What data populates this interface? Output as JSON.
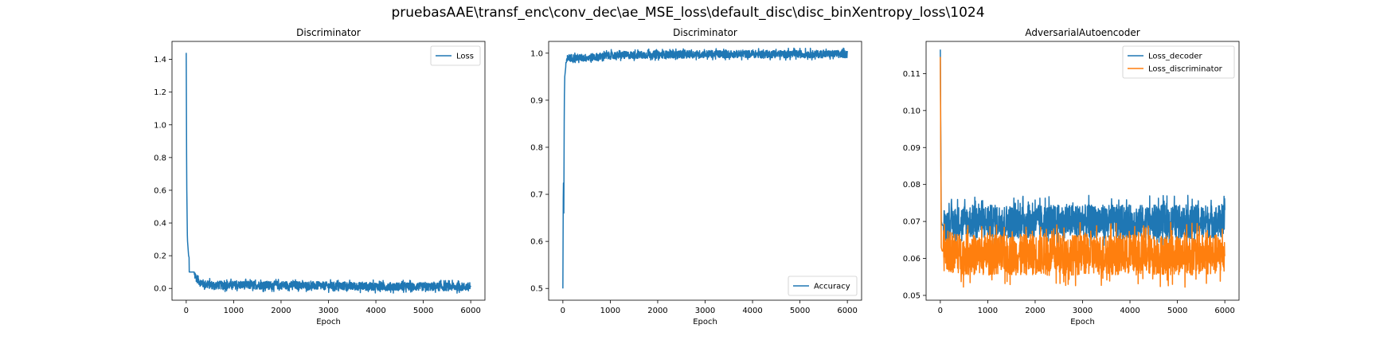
{
  "figure": {
    "suptitle": "pruebasAAE\\transf_enc\\conv_dec\\ae_MSE_loss\\default_disc\\disc_binXentropy_loss\\1024"
  },
  "colors": {
    "blue": "#1f77b4",
    "orange": "#ff7f0e"
  },
  "chart_data": [
    {
      "type": "line",
      "title": "Discriminator",
      "xlabel": "Epoch",
      "ylabel": "",
      "xlim": [
        -300,
        6300
      ],
      "ylim": [
        -0.072,
        1.51
      ],
      "xticks": [
        0,
        1000,
        2000,
        3000,
        4000,
        5000,
        6000
      ],
      "yticks": [
        0.0,
        0.2,
        0.4,
        0.6,
        0.8,
        1.0,
        1.2,
        1.4
      ],
      "ytick_format": 1,
      "legend": "upper right",
      "grid": false,
      "series": [
        {
          "name": "Loss",
          "color": "#1f77b4",
          "x": [
            0,
            10,
            25,
            50,
            100,
            150,
            200,
            300,
            400,
            600,
            1000,
            2000,
            3000,
            4000,
            5000,
            6000
          ],
          "y": [
            1.44,
            0.65,
            0.3,
            0.2,
            0.15,
            0.11,
            0.07,
            0.035,
            0.025,
            0.02,
            0.02,
            0.02,
            0.015,
            0.012,
            0.01,
            0.01
          ],
          "noise_amplitude": 0.025,
          "max_value": 0.1
        }
      ]
    },
    {
      "type": "line",
      "title": "Discriminator",
      "xlabel": "Epoch",
      "ylabel": "",
      "xlim": [
        -300,
        6300
      ],
      "ylim": [
        0.475,
        1.025
      ],
      "xticks": [
        0,
        1000,
        2000,
        3000,
        4000,
        5000,
        6000
      ],
      "yticks": [
        0.5,
        0.6,
        0.7,
        0.8,
        0.9,
        1.0
      ],
      "ytick_format": 1,
      "legend": "lower right",
      "grid": false,
      "series": [
        {
          "name": "Accuracy",
          "color": "#1f77b4",
          "x": [
            0,
            10,
            20,
            30,
            40,
            60,
            100,
            200,
            500,
            1000,
            2000,
            3000,
            4000,
            5000,
            6000
          ],
          "y": [
            0.5,
            0.74,
            0.66,
            0.9,
            0.95,
            0.97,
            0.99,
            0.99,
            0.99,
            0.995,
            0.997,
            0.998,
            0.998,
            0.998,
            0.998
          ],
          "noise_amplitude": 0.008,
          "min_value": 0.98
        }
      ]
    },
    {
      "type": "line",
      "title": "AdversarialAutoencoder",
      "xlabel": "Epoch",
      "ylabel": "",
      "xlim": [
        -300,
        6300
      ],
      "ylim": [
        0.0487,
        0.1187
      ],
      "xticks": [
        0,
        1000,
        2000,
        3000,
        4000,
        5000,
        6000
      ],
      "yticks": [
        0.05,
        0.06,
        0.07,
        0.08,
        0.09,
        0.1,
        0.11
      ],
      "ytick_format": 2,
      "legend": "upper right",
      "grid": false,
      "series": [
        {
          "name": "Loss_decoder",
          "color": "#1f77b4",
          "x": [
            0,
            20,
            40,
            100,
            500,
            1000,
            2000,
            3000,
            4000,
            5000,
            6000
          ],
          "y": [
            0.1165,
            0.07,
            0.069,
            0.069,
            0.07,
            0.07,
            0.07,
            0.07,
            0.07,
            0.07,
            0.07
          ],
          "noise_amplitude": 0.0045,
          "max_value": 0.0815,
          "min_value": 0.063
        },
        {
          "name": "Loss_discriminator",
          "color": "#ff7f0e",
          "x": [
            0,
            20,
            40,
            100,
            500,
            1000,
            2000,
            3000,
            4000,
            5000,
            6000
          ],
          "y": [
            0.1145,
            0.063,
            0.062,
            0.062,
            0.061,
            0.061,
            0.061,
            0.061,
            0.061,
            0.061,
            0.061
          ],
          "noise_amplitude": 0.0055,
          "max_value": 0.071,
          "min_value": 0.0505
        }
      ]
    }
  ]
}
